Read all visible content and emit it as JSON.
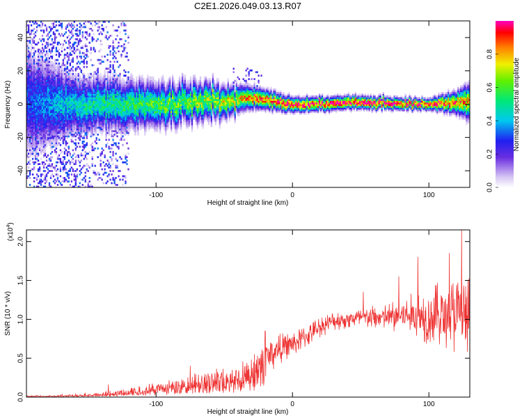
{
  "title": "C2E1.2026.049.03.13.R07",
  "colors": {
    "snr_line": "#ee3333",
    "axis": "#000000",
    "background": "#ffffff"
  },
  "chart_data": [
    {
      "type": "heatmap",
      "name": "spectrogram",
      "xlabel": "Height of straight line (km)",
      "ylabel": "Frequency (Hz)",
      "xlim": [
        -195,
        130
      ],
      "ylim": [
        -50,
        50
      ],
      "xticks": [
        -100,
        0,
        100
      ],
      "xtick_labels": [
        "-100",
        "0",
        "100"
      ],
      "yticks": [
        -40,
        -20,
        0,
        20,
        40
      ],
      "ytick_labels": [
        "-40",
        "-20",
        "0",
        "20",
        "40"
      ],
      "colorbar": {
        "label": "Normalized spectral amplitude",
        "range": [
          0,
          1
        ],
        "ticks": [
          0.0,
          0.2,
          0.4,
          0.6,
          0.8
        ],
        "tick_labels": [
          "0.0",
          "0.2",
          "0.4",
          "0.6",
          "0.8"
        ],
        "colormap": "rainbow (white-violet-blue-cyan-green-yellow-red-magenta)"
      },
      "ridge": {
        "description": "Spectral ridge near 0 Hz; broad/noisy at low heights, narrowing and brightening (~0.9-1.0) above about -30 km",
        "center_hz": [
          [
            -195,
            0
          ],
          [
            -100,
            0
          ],
          [
            -50,
            2
          ],
          [
            -30,
            4
          ],
          [
            0,
            0
          ],
          [
            50,
            1
          ],
          [
            100,
            0
          ],
          [
            130,
            2
          ]
        ],
        "width_hz": [
          [
            -195,
            30
          ],
          [
            -160,
            15
          ],
          [
            -100,
            12
          ],
          [
            -60,
            10
          ],
          [
            -30,
            6
          ],
          [
            0,
            4
          ],
          [
            100,
            3
          ],
          [
            120,
            6
          ],
          [
            130,
            10
          ]
        ],
        "peak_amplitude": [
          [
            -195,
            0.3
          ],
          [
            -150,
            0.5
          ],
          [
            -100,
            0.6
          ],
          [
            -50,
            0.7
          ],
          [
            -30,
            0.85
          ],
          [
            0,
            0.95
          ],
          [
            50,
            1.0
          ],
          [
            100,
            0.95
          ],
          [
            130,
            0.8
          ]
        ]
      }
    },
    {
      "type": "line",
      "name": "snr",
      "xlabel": "Height of straight line (km)",
      "ylabel": "SNR (10 * v/v)",
      "ylabel_scale": "(x10",
      "ylabel_scale_exp": "4",
      "xlim": [
        -195,
        130
      ],
      "ylim": [
        0,
        2.15
      ],
      "xticks": [
        -100,
        0,
        100
      ],
      "xtick_labels": [
        "-100",
        "0",
        "100"
      ],
      "yticks": [
        0.0,
        0.5,
        1.0,
        1.5,
        2.0
      ],
      "ytick_labels": [
        "0.0",
        "0.5",
        "1.0",
        "1.5",
        "2.0"
      ],
      "envelope": [
        [
          -195,
          0.01
        ],
        [
          -170,
          0.02
        ],
        [
          -140,
          0.04
        ],
        [
          -120,
          0.07
        ],
        [
          -100,
          0.13
        ],
        [
          -80,
          0.2
        ],
        [
          -60,
          0.26
        ],
        [
          -40,
          0.3
        ],
        [
          -30,
          0.36
        ],
        [
          -20,
          0.5
        ],
        [
          -10,
          0.62
        ],
        [
          0,
          0.68
        ],
        [
          10,
          0.78
        ],
        [
          20,
          0.9
        ],
        [
          30,
          0.98
        ],
        [
          40,
          1.0
        ],
        [
          50,
          1.02
        ],
        [
          60,
          1.02
        ],
        [
          70,
          1.03
        ],
        [
          80,
          1.05
        ],
        [
          90,
          1.05
        ],
        [
          100,
          1.05
        ],
        [
          110,
          1.05
        ],
        [
          120,
          1.05
        ],
        [
          130,
          1.05
        ]
      ],
      "noise_amplitude": [
        [
          -195,
          0.01
        ],
        [
          -120,
          0.04
        ],
        [
          -80,
          0.08
        ],
        [
          -40,
          0.12
        ],
        [
          -20,
          0.25
        ],
        [
          0,
          0.15
        ],
        [
          40,
          0.12
        ],
        [
          70,
          0.18
        ],
        [
          90,
          0.3
        ],
        [
          110,
          0.45
        ],
        [
          130,
          0.55
        ]
      ],
      "notable_peaks": [
        [
          -135,
          0.16
        ],
        [
          -75,
          0.4
        ],
        [
          -20,
          0.85
        ],
        [
          52,
          1.35
        ],
        [
          78,
          1.55
        ],
        [
          92,
          1.8
        ],
        [
          115,
          1.85
        ],
        [
          124,
          2.15
        ]
      ]
    }
  ]
}
